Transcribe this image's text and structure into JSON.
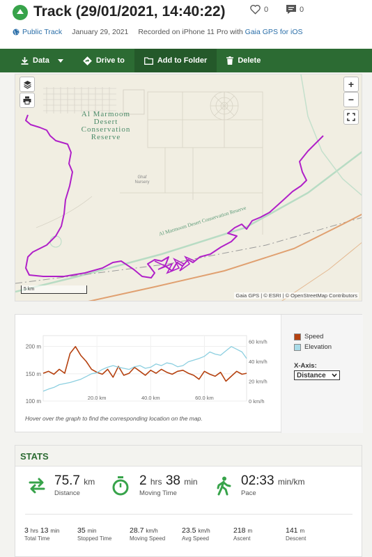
{
  "header": {
    "title": "Track (29/01/2021, 14:40:22)",
    "likes": "0",
    "comments": "0",
    "visibility": "Public Track",
    "date": "January 29, 2021",
    "recorded_prefix": "Recorded on iPhone 11 Pro with",
    "recorded_app": "Gaia GPS for iOS"
  },
  "toolbar": {
    "data_label": "Data",
    "drive_label": "Drive to",
    "folder_label": "Add to Folder",
    "delete_label": "Delete"
  },
  "map": {
    "place_label_lines": [
      "Al Marmoom",
      "Desert",
      "Conservation",
      "Reserve"
    ],
    "nursery_label_lines": [
      "Ghaf",
      "Nursery"
    ],
    "road_label": "Al Marmoom Desert Conservation Reserve",
    "scale_label": "5 km",
    "attribution": "Gaia GPS | © ESRI | © OpenStreetMap Contributors",
    "zoom_in": "+",
    "zoom_out": "−",
    "track_color": "#b020c8",
    "road_color": "#e0a070"
  },
  "chart_data": {
    "type": "line",
    "x": [
      0,
      2,
      4,
      6,
      8,
      10,
      12,
      14,
      16,
      18,
      20,
      22,
      24,
      26,
      28,
      30,
      32,
      34,
      36,
      38,
      40,
      42,
      44,
      46,
      48,
      50,
      52,
      54,
      56,
      58,
      60,
      62,
      64,
      66,
      68,
      70,
      72,
      74,
      75.7
    ],
    "series": [
      {
        "name": "Speed",
        "axis": "right",
        "color": "#b5410f",
        "values": [
          28,
          30,
          27,
          32,
          28,
          48,
          55,
          46,
          40,
          32,
          29,
          27,
          32,
          24,
          35,
          26,
          28,
          34,
          30,
          26,
          31,
          28,
          32,
          29,
          27,
          30,
          31,
          28,
          26,
          22,
          30,
          27,
          25,
          29,
          20,
          25,
          30,
          27,
          28
        ]
      },
      {
        "name": "Elevation",
        "axis": "left",
        "color": "#8ccfe0",
        "values": [
          118,
          122,
          125,
          130,
          132,
          134,
          137,
          140,
          145,
          150,
          152,
          158,
          162,
          165,
          162,
          160,
          158,
          163,
          165,
          160,
          162,
          168,
          165,
          170,
          168,
          163,
          165,
          172,
          175,
          178,
          182,
          190,
          186,
          184,
          192,
          200,
          195,
          190,
          178
        ]
      }
    ],
    "y_left_ticks": [
      "100 m",
      "150 m",
      "200 m"
    ],
    "y_left_range": [
      100,
      220
    ],
    "y_right_ticks": [
      "0 km/h",
      "20 km/h",
      "40 km/h",
      "60 km/h"
    ],
    "y_right_range": [
      0,
      66
    ],
    "x_ticks": [
      "20.0 km",
      "40.0 km",
      "60.0 km"
    ],
    "x_tick_values": [
      20,
      40,
      60
    ],
    "x_range": [
      0,
      75.7
    ]
  },
  "chart_panel": {
    "legend_speed": "Speed",
    "legend_elevation": "Elevation",
    "xaxis_label": "X-Axis:",
    "xaxis_value": "Distance",
    "hint": "Hover over the graph to find the corresponding location on the map."
  },
  "stats": {
    "title": "STATS",
    "distance": {
      "value": "75.7",
      "unit": "km",
      "label": "Distance"
    },
    "moving_time": {
      "h": "2",
      "h_unit": "hrs",
      "m": "38",
      "m_unit": "min",
      "label": "Moving Time"
    },
    "pace": {
      "value": "02:33",
      "unit": "min/km",
      "label": "Pace"
    },
    "total_time": {
      "h": "3",
      "h_unit": "hrs",
      "m": "13",
      "m_unit": "min",
      "label": "Total Time"
    },
    "stopped_time": {
      "value": "35",
      "unit": "min",
      "label": "Stopped Time"
    },
    "moving_speed": {
      "value": "28.7",
      "unit": "km/h",
      "label": "Moving Speed"
    },
    "avg_speed": {
      "value": "23.5",
      "unit": "km/h",
      "label": "Avg Speed"
    },
    "ascent": {
      "value": "218",
      "unit": "m",
      "label": "Ascent"
    },
    "descent": {
      "value": "141",
      "unit": "m",
      "label": "Descent"
    }
  },
  "colors": {
    "brand_green": "#2c6b33",
    "icon_green": "#37a34a",
    "link_blue": "#2a6ea8"
  }
}
